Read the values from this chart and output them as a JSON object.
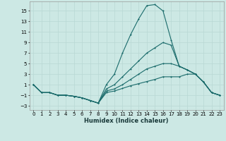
{
  "xlabel": "Humidex (Indice chaleur)",
  "background_color": "#cce8e4",
  "grid_color": "#b8d8d4",
  "line_color": "#1a6b6b",
  "xlim": [
    -0.5,
    23.5
  ],
  "ylim": [
    -3.8,
    16.8
  ],
  "yticks": [
    -3,
    -1,
    1,
    3,
    5,
    7,
    9,
    11,
    13,
    15
  ],
  "xticks": [
    0,
    1,
    2,
    3,
    4,
    5,
    6,
    7,
    8,
    9,
    10,
    11,
    12,
    13,
    14,
    15,
    16,
    17,
    18,
    19,
    20,
    21,
    22,
    23
  ],
  "line1_y": [
    1,
    -0.5,
    -0.5,
    -1,
    -1,
    -1.2,
    -1.5,
    -2.0,
    -2.5,
    1.0,
    3.0,
    7.0,
    10.5,
    13.5,
    16.0,
    16.2,
    15.0,
    9.5,
    4.5,
    3.8,
    3.0,
    1.5,
    -0.5,
    -1.0
  ],
  "line2_y": [
    1,
    -0.5,
    -0.5,
    -1,
    -1,
    -1.2,
    -1.5,
    -2.0,
    -2.5,
    0.2,
    1.0,
    2.5,
    4.0,
    5.5,
    7.0,
    8.0,
    9.0,
    8.5,
    4.5,
    3.8,
    3.0,
    1.5,
    -0.5,
    -1.0
  ],
  "line3_y": [
    1,
    -0.5,
    -0.5,
    -1,
    -1,
    -1.2,
    -1.5,
    -2.0,
    -2.5,
    -0.2,
    0.2,
    1.0,
    2.0,
    3.0,
    4.0,
    4.5,
    5.0,
    5.0,
    4.5,
    3.8,
    3.0,
    1.5,
    -0.5,
    -1.0
  ],
  "line4_y": [
    1,
    -0.5,
    -0.5,
    -1,
    -1,
    -1.2,
    -1.5,
    -2.0,
    -2.5,
    -0.5,
    -0.2,
    0.3,
    0.8,
    1.2,
    1.6,
    2.0,
    2.5,
    2.5,
    2.5,
    3.0,
    3.0,
    1.5,
    -0.5,
    -1.0
  ]
}
